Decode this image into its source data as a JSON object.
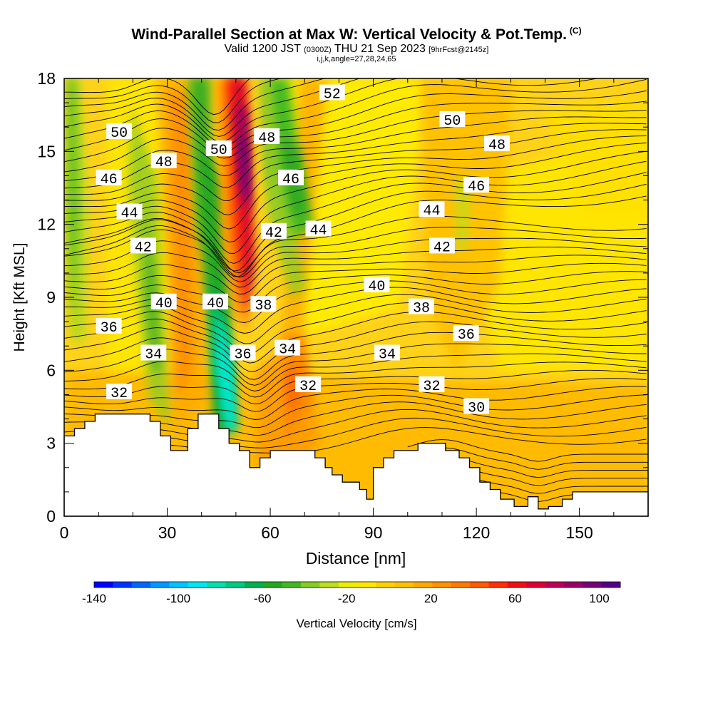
{
  "title": "Wind-Parallel Section at Max W: Vertical Velocity & Pot.Temp.",
  "copyright": "(C)",
  "subtitle": {
    "valid": "Valid 1200 JST",
    "utc": "(0300Z)",
    "date": "THU 21 Sep 2023",
    "forecast": "[9hrFcst@2145z]"
  },
  "subtitle2": "i,j,k,angle=27,28,24,65",
  "chart_data": {
    "type": "heatmap",
    "xlabel": "Distance [nm]",
    "ylabel": "Height [Kft MSL]",
    "xlim": [
      0,
      170
    ],
    "ylim": [
      0,
      18
    ],
    "xticks": [
      0,
      30,
      60,
      90,
      120,
      150
    ],
    "yticks": [
      0,
      3,
      6,
      9,
      12,
      15,
      18
    ],
    "colorbar": {
      "label": "Vertical Velocity [cm/s]",
      "min": -140,
      "max": 110,
      "ticks": [
        -140,
        -100,
        -60,
        -20,
        20,
        60,
        100
      ],
      "colors": [
        "#0000ff",
        "#0033ff",
        "#0066ff",
        "#0099ff",
        "#00c4ff",
        "#00e8f0",
        "#00e0b0",
        "#00cc80",
        "#00b050",
        "#22a822",
        "#44b822",
        "#88cc22",
        "#bbdd22",
        "#eeee00",
        "#ffe800",
        "#ffd000",
        "#ffc000",
        "#ffaa00",
        "#ff9200",
        "#ff7a00",
        "#ff5a00",
        "#ff3000",
        "#ee1010",
        "#dd0033",
        "#bb0055",
        "#990066",
        "#770077",
        "#550088"
      ]
    },
    "contour_field": "Potential Temperature",
    "contour_labels": [
      {
        "value": "52",
        "x": 78,
        "y": 17.4
      },
      {
        "value": "50",
        "x": 16,
        "y": 15.8
      },
      {
        "value": "50",
        "x": 45,
        "y": 15.1
      },
      {
        "value": "50",
        "x": 113,
        "y": 16.3
      },
      {
        "value": "48",
        "x": 29,
        "y": 14.6
      },
      {
        "value": "48",
        "x": 59,
        "y": 15.6
      },
      {
        "value": "48",
        "x": 126,
        "y": 15.3
      },
      {
        "value": "46",
        "x": 13,
        "y": 13.9
      },
      {
        "value": "46",
        "x": 66,
        "y": 13.9
      },
      {
        "value": "46",
        "x": 120,
        "y": 13.6
      },
      {
        "value": "44",
        "x": 19,
        "y": 12.5
      },
      {
        "value": "44",
        "x": 74,
        "y": 11.8
      },
      {
        "value": "44",
        "x": 107,
        "y": 12.6
      },
      {
        "value": "42",
        "x": 23,
        "y": 11.1
      },
      {
        "value": "42",
        "x": 61,
        "y": 11.7
      },
      {
        "value": "42",
        "x": 110,
        "y": 11.1
      },
      {
        "value": "40",
        "x": 29,
        "y": 8.8
      },
      {
        "value": "40",
        "x": 44,
        "y": 8.8
      },
      {
        "value": "40",
        "x": 91,
        "y": 9.5
      },
      {
        "value": "38",
        "x": 58,
        "y": 8.7
      },
      {
        "value": "38",
        "x": 104,
        "y": 8.6
      },
      {
        "value": "36",
        "x": 13,
        "y": 7.8
      },
      {
        "value": "36",
        "x": 52,
        "y": 6.7
      },
      {
        "value": "36",
        "x": 117,
        "y": 7.5
      },
      {
        "value": "34",
        "x": 26,
        "y": 6.7
      },
      {
        "value": "34",
        "x": 65,
        "y": 6.9
      },
      {
        "value": "34",
        "x": 94,
        "y": 6.7
      },
      {
        "value": "32",
        "x": 16,
        "y": 5.1
      },
      {
        "value": "32",
        "x": 71,
        "y": 5.4
      },
      {
        "value": "32",
        "x": 107,
        "y": 5.4
      },
      {
        "value": "30",
        "x": 120,
        "y": 4.5
      }
    ],
    "terrain": [
      [
        0,
        3.3
      ],
      [
        3,
        3.3
      ],
      [
        3,
        3.6
      ],
      [
        6,
        3.6
      ],
      [
        6,
        3.9
      ],
      [
        9,
        3.9
      ],
      [
        9,
        4.2
      ],
      [
        25,
        4.2
      ],
      [
        25,
        3.9
      ],
      [
        28,
        3.9
      ],
      [
        28,
        3.3
      ],
      [
        31,
        3.3
      ],
      [
        31,
        2.7
      ],
      [
        36,
        2.7
      ],
      [
        36,
        3.6
      ],
      [
        39,
        3.6
      ],
      [
        39,
        4.2
      ],
      [
        45,
        4.2
      ],
      [
        45,
        3.6
      ],
      [
        48,
        3.6
      ],
      [
        48,
        3.0
      ],
      [
        51,
        3.0
      ],
      [
        51,
        2.7
      ],
      [
        54,
        2.7
      ],
      [
        54,
        2.0
      ],
      [
        57,
        2.0
      ],
      [
        57,
        2.4
      ],
      [
        60,
        2.4
      ],
      [
        60,
        2.7
      ],
      [
        73,
        2.7
      ],
      [
        73,
        2.4
      ],
      [
        76,
        2.4
      ],
      [
        76,
        2.0
      ],
      [
        78,
        2.0
      ],
      [
        78,
        1.7
      ],
      [
        81,
        1.7
      ],
      [
        81,
        1.4
      ],
      [
        86,
        1.4
      ],
      [
        86,
        1.1
      ],
      [
        88,
        1.1
      ],
      [
        88,
        0.7
      ],
      [
        90,
        0.7
      ],
      [
        90,
        2.0
      ],
      [
        93,
        2.0
      ],
      [
        93,
        2.4
      ],
      [
        96,
        2.4
      ],
      [
        96,
        2.7
      ],
      [
        103,
        2.7
      ],
      [
        103,
        3.0
      ],
      [
        111,
        3.0
      ],
      [
        111,
        2.7
      ],
      [
        115,
        2.7
      ],
      [
        115,
        2.4
      ],
      [
        118,
        2.4
      ],
      [
        118,
        2.0
      ],
      [
        121,
        2.0
      ],
      [
        121,
        1.4
      ],
      [
        124,
        1.4
      ],
      [
        124,
        1.1
      ],
      [
        127,
        1.1
      ],
      [
        127,
        0.7
      ],
      [
        131,
        0.7
      ],
      [
        131,
        0.4
      ],
      [
        135,
        0.4
      ],
      [
        135,
        0.8
      ],
      [
        138,
        0.8
      ],
      [
        138,
        0.3
      ],
      [
        141,
        0.3
      ],
      [
        141,
        0.4
      ],
      [
        145,
        0.4
      ],
      [
        145,
        0.7
      ],
      [
        148,
        0.7
      ],
      [
        148,
        1.0
      ],
      [
        170,
        1.0
      ]
    ]
  }
}
